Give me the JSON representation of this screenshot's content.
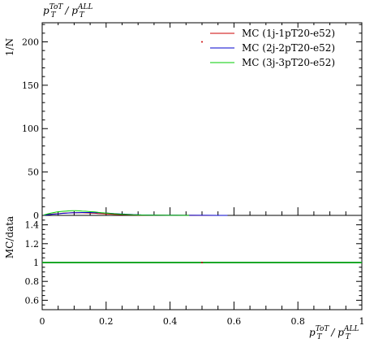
{
  "title_main": "p",
  "title_sup1": "ToT",
  "title_sub1": "T",
  "title_slash": " / p",
  "title_sup2": "ALL",
  "title_sub2": "T",
  "xlabel_main": "p",
  "xlabel_sup1": "ToT",
  "xlabel_sub1": "T",
  "xlabel_slash": " / p",
  "xlabel_sup2": "ALL",
  "xlabel_sub2": "T",
  "chart_data": [
    {
      "type": "line",
      "panel": "main",
      "ylabel": "1/N",
      "xlim": [
        0,
        1
      ],
      "ylim": [
        0,
        222
      ],
      "yticks": [
        0,
        50,
        100,
        150,
        200
      ],
      "xticks": [
        0,
        0.2,
        0.4,
        0.6,
        0.8,
        1
      ],
      "legend_position": "top-right",
      "data_point": {
        "x": 0.5,
        "y": 200,
        "color": "#cc0000"
      },
      "series": [
        {
          "name": "MC (1j-1pT20-e52)",
          "color": "#cc0000",
          "x": [
            0.005,
            0.015,
            0.025,
            0.035,
            0.045,
            0.055,
            0.065,
            0.075,
            0.085,
            0.095,
            0.105,
            0.115,
            0.125,
            0.135,
            0.145,
            0.155,
            0.165,
            0.175,
            0.185,
            0.195,
            0.205,
            0.215,
            0.225,
            0.235,
            0.245,
            0.255,
            0.265,
            0.275,
            0.285,
            0.295,
            0.31,
            0.33,
            0.35,
            0.37,
            0.39,
            0.42,
            0.46,
            0.5,
            0.55
          ],
          "y": [
            0.3,
            0.8,
            1.2,
            1.6,
            1.9,
            2.2,
            2.5,
            2.7,
            2.9,
            3.0,
            3.1,
            3.1,
            3.0,
            2.9,
            2.8,
            2.6,
            2.4,
            2.2,
            2.0,
            1.8,
            1.6,
            1.4,
            1.2,
            1.0,
            0.9,
            0.8,
            0.7,
            0.6,
            0.5,
            0.4,
            0.3,
            0.25,
            0.2,
            0.15,
            0.1,
            0.08,
            0.05,
            0.03,
            0.01
          ]
        },
        {
          "name": "MC (2j-2pT20-e52)",
          "color": "#0000cc",
          "x": [
            0.005,
            0.015,
            0.025,
            0.035,
            0.045,
            0.055,
            0.065,
            0.075,
            0.085,
            0.095,
            0.105,
            0.115,
            0.125,
            0.135,
            0.145,
            0.155,
            0.165,
            0.175,
            0.185,
            0.195,
            0.205,
            0.215,
            0.225,
            0.235,
            0.245,
            0.255,
            0.265,
            0.275,
            0.285,
            0.295,
            0.31,
            0.33,
            0.35,
            0.37,
            0.39,
            0.42,
            0.46,
            0.5,
            0.55,
            0.58
          ],
          "y": [
            0.2,
            0.6,
            1.0,
            1.4,
            1.7,
            2.0,
            2.3,
            2.6,
            2.8,
            3.0,
            3.1,
            3.2,
            3.3,
            3.3,
            3.3,
            3.2,
            3.1,
            3.0,
            2.9,
            2.7,
            2.5,
            2.3,
            2.1,
            1.9,
            1.7,
            1.5,
            1.3,
            1.1,
            0.9,
            0.8,
            0.6,
            0.5,
            0.4,
            0.3,
            0.2,
            0.15,
            0.1,
            0.06,
            0.03,
            0.01
          ]
        },
        {
          "name": "MC (3j-3pT20-e52)",
          "color": "#00cc00",
          "x": [
            0.005,
            0.015,
            0.025,
            0.035,
            0.045,
            0.055,
            0.065,
            0.075,
            0.085,
            0.095,
            0.105,
            0.115,
            0.125,
            0.135,
            0.145,
            0.155,
            0.165,
            0.175,
            0.185,
            0.195,
            0.205,
            0.215,
            0.225,
            0.235,
            0.245,
            0.255,
            0.265,
            0.275,
            0.285,
            0.295,
            0.31,
            0.33,
            0.35,
            0.37,
            0.39,
            0.42,
            0.46
          ],
          "y": [
            0.5,
            1.5,
            2.4,
            3.2,
            3.8,
            4.3,
            4.7,
            5.0,
            5.2,
            5.3,
            5.3,
            5.2,
            5.0,
            4.8,
            4.5,
            4.2,
            3.9,
            3.5,
            3.1,
            2.8,
            2.5,
            2.2,
            1.9,
            1.6,
            1.4,
            1.2,
            1.0,
            0.8,
            0.7,
            0.6,
            0.4,
            0.3,
            0.2,
            0.15,
            0.1,
            0.05,
            0.02
          ]
        }
      ]
    },
    {
      "type": "line",
      "panel": "ratio",
      "ylabel": "MC/data",
      "xlim": [
        0,
        1
      ],
      "ylim": [
        0.5,
        1.5
      ],
      "yticks": [
        0.6,
        0.8,
        1,
        1.2,
        1.4
      ],
      "xticks": [
        0,
        0.2,
        0.4,
        0.6,
        0.8,
        1
      ],
      "series": [
        {
          "name": "MC (1j-1pT20-e52)",
          "color": "#cc0000",
          "x": [
            0,
            1
          ],
          "y": [
            1,
            1
          ]
        },
        {
          "name": "MC (2j-2pT20-e52)",
          "color": "#0000cc",
          "x": [
            0,
            1
          ],
          "y": [
            1,
            1
          ]
        },
        {
          "name": "MC (3j-3pT20-e52)",
          "color": "#00cc00",
          "x": [
            0,
            1
          ],
          "y": [
            1,
            1
          ]
        }
      ]
    }
  ]
}
